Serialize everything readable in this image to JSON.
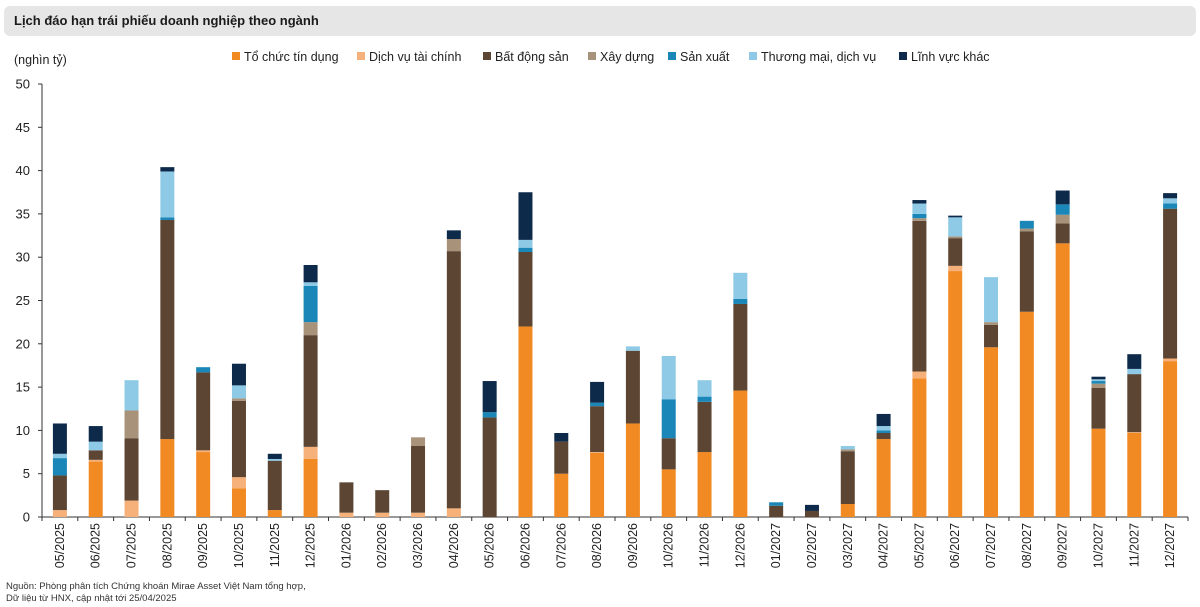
{
  "title": "Lịch đáo hạn trái phiếu doanh nghiệp theo ngành",
  "source": {
    "line1": "Nguồn: Phòng phân tích Chứng khoán Mirae Asset Việt Nam tổng hợp,",
    "line2": "Dữ liệu từ HNX, cập nhật tới 25/04/2025"
  },
  "chart_data": {
    "type": "bar",
    "stacked": true,
    "ylabel": "(nghìn tỷ)",
    "ylim": [
      0,
      50
    ],
    "yticks": [
      0,
      5,
      10,
      15,
      20,
      25,
      30,
      35,
      40,
      45,
      50
    ],
    "legend_position": "top",
    "categories": [
      "05/2025",
      "06/2025",
      "07/2025",
      "08/2025",
      "09/2025",
      "10/2025",
      "11/2025",
      "12/2025",
      "01/2026",
      "02/2026",
      "03/2026",
      "04/2026",
      "05/2026",
      "06/2026",
      "07/2026",
      "08/2026",
      "09/2026",
      "10/2026",
      "11/2026",
      "12/2026",
      "01/2027",
      "02/2027",
      "03/2027",
      "04/2027",
      "05/2027",
      "06/2027",
      "07/2027",
      "08/2027",
      "09/2027",
      "10/2027",
      "11/2027",
      "12/2027"
    ],
    "series": [
      {
        "name": "Tổ chức tín dụng",
        "color": "#f28a24",
        "values": [
          0,
          6.4,
          0,
          9,
          7.5,
          3.3,
          0.8,
          6.7,
          0,
          0,
          0,
          0,
          0,
          22,
          5,
          7.4,
          10.8,
          5.5,
          7.5,
          14.6,
          0,
          0,
          1.5,
          9,
          16,
          28.4,
          19.6,
          23.7,
          31.6,
          10.2,
          9.7,
          18
        ]
      },
      {
        "name": "Dịch vụ tài chính",
        "color": "#f6b17a",
        "values": [
          0.8,
          0.2,
          1.9,
          0,
          0.2,
          1.3,
          0,
          1.4,
          0.5,
          0.5,
          0.5,
          1,
          0,
          0,
          0,
          0.1,
          0,
          0,
          0,
          0,
          0,
          0,
          0,
          0,
          0.8,
          0.6,
          0,
          0,
          0,
          0,
          0.1,
          0.3
        ]
      },
      {
        "name": "Bất động sản",
        "color": "#5c4633",
        "values": [
          4,
          1.1,
          7.2,
          25.3,
          9,
          8.8,
          5.7,
          12.9,
          3.5,
          2.6,
          7.7,
          29.7,
          11.5,
          8.6,
          3.7,
          5.3,
          8.4,
          3.6,
          5.8,
          10,
          1.3,
          0.7,
          6.1,
          0.7,
          17.4,
          3.2,
          2.6,
          9.3,
          2.3,
          4.7,
          6.7,
          17.3
        ]
      },
      {
        "name": "Xây dựng",
        "color": "#a8927a",
        "values": [
          0,
          0,
          3.2,
          0,
          0,
          0.3,
          0,
          1.5,
          0,
          0,
          1,
          1.4,
          0,
          0,
          0,
          0,
          0,
          0,
          0,
          0,
          0,
          0,
          0.2,
          0,
          0.3,
          0.2,
          0.3,
          0.3,
          1,
          0.5,
          0,
          0
        ]
      },
      {
        "name": "Sản xuất",
        "color": "#1a87b8",
        "values": [
          2,
          0,
          0,
          0.3,
          0.6,
          0,
          0,
          4.2,
          0,
          0,
          0,
          0,
          0.6,
          0.5,
          0,
          0.4,
          0,
          4.5,
          0.6,
          0.6,
          0.4,
          0,
          0,
          0.3,
          0.5,
          0,
          0,
          0.9,
          1.2,
          0.3,
          0,
          0.6
        ]
      },
      {
        "name": "Thương mại, dịch vụ",
        "color": "#8ecae6",
        "values": [
          0.5,
          1,
          3.5,
          5.3,
          0,
          1.5,
          0.2,
          0.4,
          0,
          0,
          0,
          0,
          0,
          0.9,
          0,
          0,
          0.5,
          5,
          1.9,
          3,
          0,
          0,
          0.4,
          0.5,
          1.2,
          2.2,
          5.2,
          0,
          0,
          0.2,
          0.6,
          0.6
        ]
      },
      {
        "name": "Lĩnh vực khác",
        "color": "#0e2a4a",
        "values": [
          3.5,
          1.8,
          0,
          0.5,
          0,
          2.5,
          0.6,
          2,
          0,
          0,
          0,
          1,
          3.6,
          5.5,
          1,
          2.4,
          0,
          0,
          0,
          0,
          0,
          0.7,
          0,
          1.4,
          0.4,
          0.2,
          0,
          0,
          1.6,
          0.3,
          1.7,
          0.6
        ]
      }
    ]
  }
}
